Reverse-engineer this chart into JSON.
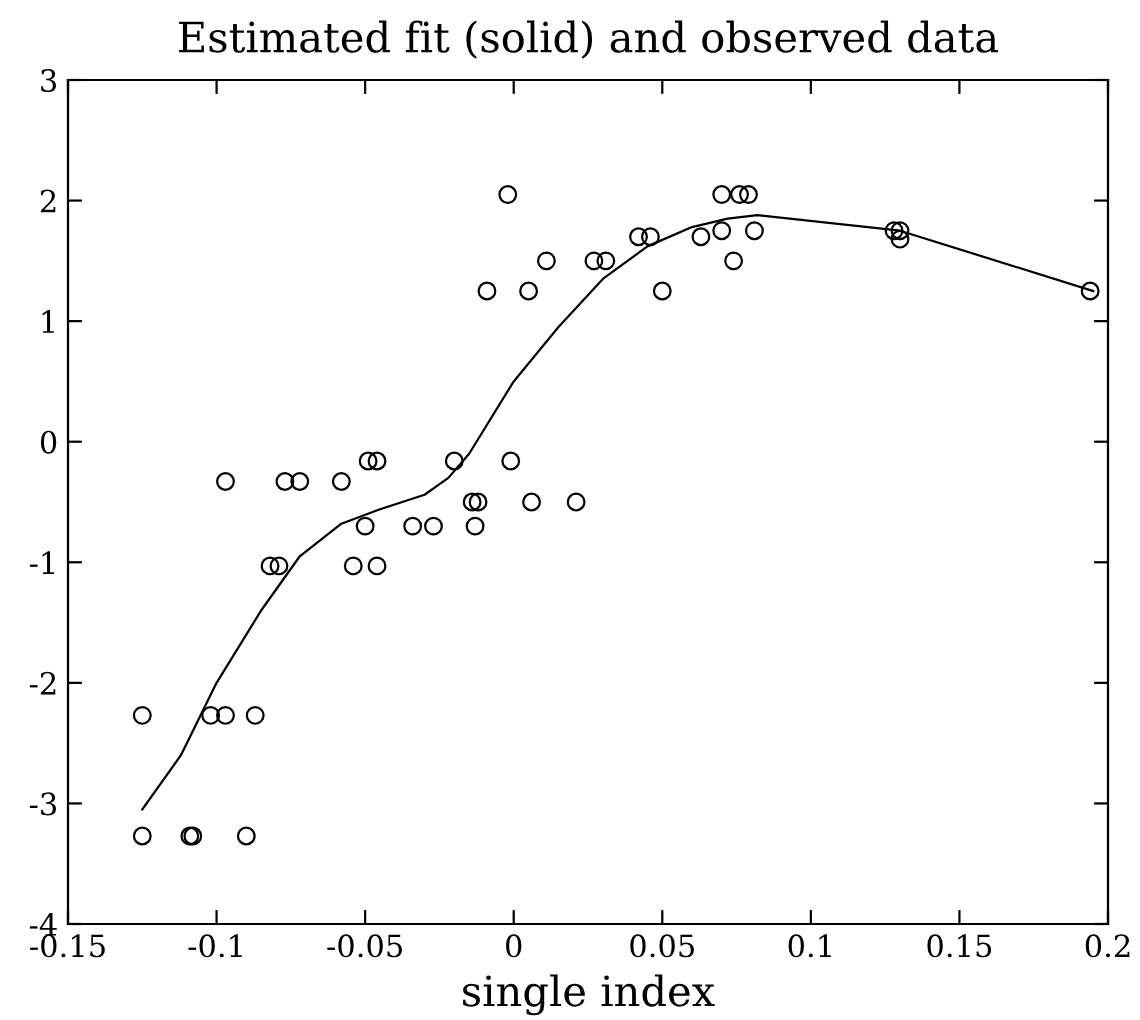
{
  "chart_data": {
    "type": "scatter",
    "title": "Estimated fit (solid) and observed data",
    "xlabel": "single index",
    "xlim": [
      -0.15,
      0.2
    ],
    "ylim": [
      -4,
      3
    ],
    "xticks": [
      -0.15,
      -0.1,
      -0.05,
      0,
      0.05,
      0.1,
      0.15,
      0.2
    ],
    "yticks": [
      -4,
      -3,
      -2,
      -1,
      0,
      1,
      2,
      3
    ],
    "grid": false,
    "legend": false,
    "series": [
      {
        "marker": "circle",
        "color": "#000000",
        "x": [
          -0.125,
          -0.125,
          -0.109,
          -0.108,
          -0.09,
          -0.102,
          -0.097,
          -0.087,
          -0.097,
          -0.082,
          -0.079,
          -0.077,
          -0.072,
          -0.058,
          -0.054,
          -0.05,
          -0.049,
          -0.046,
          -0.046,
          -0.034,
          -0.027,
          -0.02,
          -0.014,
          -0.012,
          -0.013,
          -0.002,
          -0.001,
          -0.009,
          0.005,
          0.006,
          0.011,
          0.021,
          0.027,
          0.031,
          0.042,
          0.046,
          0.05,
          0.063,
          0.07,
          0.07,
          0.074,
          0.076,
          0.079,
          0.081,
          0.128,
          0.13,
          0.13,
          0.194
        ],
        "values": [
          -2.27,
          -3.27,
          -3.27,
          -3.27,
          -3.27,
          -2.27,
          -2.27,
          -2.27,
          -0.33,
          -1.03,
          -1.03,
          -0.33,
          -0.33,
          -0.33,
          -1.03,
          -0.7,
          -0.16,
          -0.16,
          -1.03,
          -0.7,
          -0.7,
          -0.16,
          -0.5,
          -0.5,
          -0.7,
          2.05,
          -0.16,
          1.25,
          1.25,
          -0.5,
          1.5,
          -0.5,
          1.5,
          1.5,
          1.7,
          1.7,
          1.25,
          1.7,
          1.75,
          2.05,
          1.5,
          2.05,
          2.05,
          1.75,
          1.75,
          1.75,
          1.68,
          1.25
        ]
      },
      {
        "type": "line",
        "marker": "none",
        "line_style": "solid",
        "color": "#000000",
        "x": [
          -0.125,
          -0.112,
          -0.1,
          -0.085,
          -0.072,
          -0.058,
          -0.045,
          -0.03,
          -0.022,
          -0.015,
          0,
          0.015,
          0.03,
          0.045,
          0.06,
          0.072,
          0.082,
          0.13,
          0.195
        ],
        "values": [
          -3.05,
          -2.6,
          -2.0,
          -1.4,
          -0.95,
          -0.68,
          -0.56,
          -0.44,
          -0.3,
          -0.1,
          0.5,
          0.95,
          1.35,
          1.62,
          1.78,
          1.85,
          1.88,
          1.75,
          1.25
        ]
      }
    ]
  }
}
